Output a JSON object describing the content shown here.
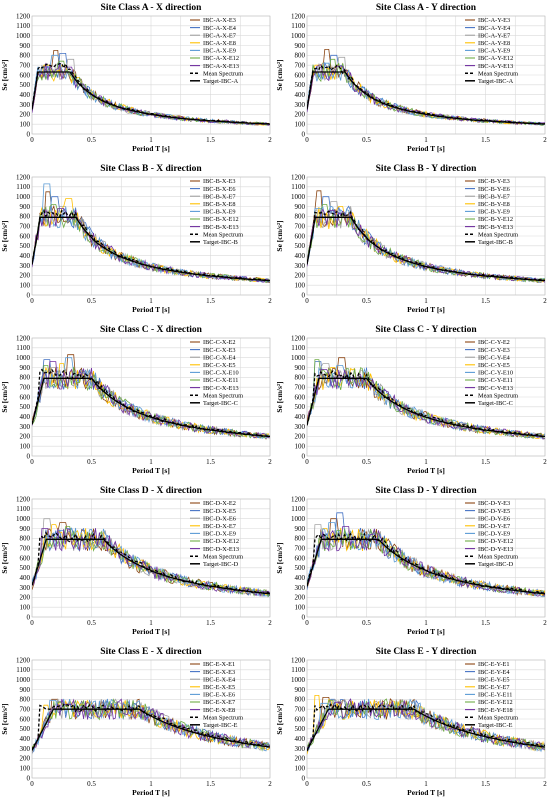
{
  "chart_data": [
    {
      "type": "line",
      "title": "Site Class A - X direction",
      "xlabel": "Period T [s]",
      "ylabel": "Se [cm/s²]",
      "xlim": [
        0,
        2
      ],
      "ylim": [
        0,
        1200
      ],
      "xticks": [
        "0",
        "0.5",
        "1",
        "1.5",
        "2"
      ],
      "yticks": [
        "0",
        "100",
        "200",
        "300",
        "400",
        "500",
        "600",
        "700",
        "800",
        "900",
        "1000",
        "1100",
        "1200"
      ],
      "grid": true,
      "legend": "top-right",
      "records": [
        "IBC-A-X-E3",
        "IBC-A-X-E4",
        "IBC-A-X-E7",
        "IBC-A-X-E8",
        "IBC-A-X-E9",
        "IBC-A-X-E12",
        "IBC-A-X-E13"
      ],
      "mean_label": "Mean Spectrum",
      "target_label": "Target-IBC-A",
      "target": {
        "T": [
          0,
          0.05,
          0.32,
          0.5,
          1.0,
          1.5,
          2.0
        ],
        "Se": [
          250,
          630,
          630,
          400,
          200,
          135,
          100
        ]
      },
      "mean_peak": 720,
      "record_peaks": [
        850,
        820,
        760,
        700,
        800,
        740,
        680
      ]
    },
    {
      "type": "line",
      "title": "Site Class A - Y direction",
      "xlabel": "Period T [s]",
      "ylabel": "Se [cm/s²]",
      "xlim": [
        0,
        2
      ],
      "ylim": [
        0,
        1200
      ],
      "xticks": [
        "0",
        "0.5",
        "1",
        "1.5",
        "2"
      ],
      "yticks": [
        "0",
        "100",
        "200",
        "300",
        "400",
        "500",
        "600",
        "700",
        "800",
        "900",
        "1000",
        "1100",
        "1200"
      ],
      "grid": true,
      "legend": "top-right",
      "records": [
        "IBC-A-Y-E3",
        "IBC-A-Y-E4",
        "IBC-A-Y-E7",
        "IBC-A-Y-E8",
        "IBC-A-Y-E9",
        "IBC-A-Y-E12",
        "IBC-A-Y-E13"
      ],
      "mean_label": "Mean Spectrum",
      "target_label": "Target-IBC-A",
      "target": {
        "T": [
          0,
          0.05,
          0.32,
          0.5,
          1.0,
          1.5,
          2.0
        ],
        "Se": [
          250,
          630,
          630,
          400,
          200,
          135,
          100
        ]
      },
      "mean_peak": 700,
      "record_peaks": [
        860,
        800,
        780,
        700,
        720,
        760,
        690
      ]
    },
    {
      "type": "line",
      "title": "Site Class B - X direction",
      "xlabel": "Period T [s]",
      "ylabel": "Se [cm/s²]",
      "xlim": [
        0,
        2
      ],
      "ylim": [
        0,
        1200
      ],
      "xticks": [
        "0",
        "0.5",
        "1",
        "1.5",
        "2"
      ],
      "yticks": [
        "0",
        "100",
        "200",
        "300",
        "400",
        "500",
        "600",
        "700",
        "800",
        "900",
        "1000",
        "1100",
        "1200"
      ],
      "grid": true,
      "legend": "top-right",
      "records": [
        "IBC-B-X-E3",
        "IBC-B-X-E6",
        "IBC-B-X-E7",
        "IBC-B-X-E8",
        "IBC-B-X-E9",
        "IBC-B-X-E12",
        "IBC-B-X-E13"
      ],
      "mean_label": "Mean Spectrum",
      "target_label": "Target-IBC-B",
      "target": {
        "T": [
          0,
          0.07,
          0.37,
          0.5,
          1.0,
          1.5,
          2.0
        ],
        "Se": [
          310,
          790,
          790,
          580,
          290,
          195,
          145
        ]
      },
      "mean_peak": 860,
      "record_peaks": [
        1050,
        1000,
        900,
        980,
        1130,
        920,
        880
      ]
    },
    {
      "type": "line",
      "title": "Site Class B - Y direction",
      "xlabel": "Period T [s]",
      "ylabel": "Se [cm/s²]",
      "xlim": [
        0,
        2
      ],
      "ylim": [
        0,
        1200
      ],
      "xticks": [
        "0",
        "0.5",
        "1",
        "1.5",
        "2"
      ],
      "yticks": [
        "0",
        "100",
        "200",
        "300",
        "400",
        "500",
        "600",
        "700",
        "800",
        "900",
        "1000",
        "1100",
        "1200"
      ],
      "grid": true,
      "legend": "top-right",
      "records": [
        "IBC-B-Y-E3",
        "IBC-B-Y-E6",
        "IBC-B-Y-E7",
        "IBC-B-Y-E8",
        "IBC-B-Y-E9",
        "IBC-B-Y-E12",
        "IBC-B-Y-E13"
      ],
      "mean_label": "Mean Spectrum",
      "target_label": "Target-IBC-B",
      "target": {
        "T": [
          0,
          0.07,
          0.37,
          0.5,
          1.0,
          1.5,
          2.0
        ],
        "Se": [
          310,
          790,
          790,
          580,
          290,
          195,
          145
        ]
      },
      "mean_peak": 850,
      "record_peaks": [
        1060,
        1000,
        950,
        900,
        880,
        920,
        860
      ]
    },
    {
      "type": "line",
      "title": "Site Class C - X direction",
      "xlabel": "Period T [s]",
      "ylabel": "Se [cm/s²]",
      "xlim": [
        0,
        2
      ],
      "ylim": [
        0,
        1200
      ],
      "xticks": [
        "0",
        "0.5",
        "1",
        "1.5",
        "2"
      ],
      "yticks": [
        "0",
        "100",
        "200",
        "300",
        "400",
        "500",
        "600",
        "700",
        "800",
        "900",
        "1000",
        "1100",
        "1200"
      ],
      "grid": true,
      "legend": "top-right",
      "records": [
        "IBC-C-X-E2",
        "IBC-C-X-E3",
        "IBC-C-X-E4",
        "IBC-C-X-E5",
        "IBC-C-X-E10",
        "IBC-C-X-E11",
        "IBC-C-X-E13"
      ],
      "mean_label": "Mean Spectrum",
      "target_label": "Target-IBC-C",
      "target": {
        "T": [
          0,
          0.1,
          0.5,
          1.0,
          1.5,
          2.0
        ],
        "Se": [
          320,
          790,
          790,
          395,
          265,
          200
        ]
      },
      "mean_peak": 880,
      "record_peaks": [
        1030,
        980,
        900,
        940,
        1000,
        920,
        960
      ]
    },
    {
      "type": "line",
      "title": "Site Class C - Y direction",
      "xlabel": "Period T [s]",
      "ylabel": "Se [cm/s²]",
      "xlim": [
        0,
        2
      ],
      "ylim": [
        0,
        1200
      ],
      "xticks": [
        "0",
        "0.5",
        "1",
        "1.5",
        "2"
      ],
      "yticks": [
        "0",
        "100",
        "200",
        "300",
        "400",
        "500",
        "600",
        "700",
        "800",
        "900",
        "1000",
        "1100",
        "1200"
      ],
      "grid": true,
      "legend": "top-right",
      "records": [
        "IBC-C-Y-E2",
        "IBC-C-Y-E3",
        "IBC-C-Y-E4",
        "IBC-C-Y-E5",
        "IBC-C-Y-E10",
        "IBC-C-Y-E11",
        "IBC-C-Y-E13"
      ],
      "mean_label": "Mean Spectrum",
      "target_label": "Target-IBC-C",
      "target": {
        "T": [
          0,
          0.1,
          0.5,
          1.0,
          1.5,
          2.0
        ],
        "Se": [
          320,
          790,
          790,
          395,
          265,
          200
        ]
      },
      "mean_peak": 870,
      "record_peaks": [
        1000,
        960,
        940,
        900,
        920,
        980,
        880
      ]
    },
    {
      "type": "line",
      "title": "Site Class D - X direction",
      "xlabel": "Period T [s]",
      "ylabel": "Se [cm/s²]",
      "xlim": [
        0,
        2
      ],
      "ylim": [
        0,
        1200
      ],
      "xticks": [
        "0",
        "0.5",
        "1",
        "1.5",
        "2"
      ],
      "yticks": [
        "0",
        "100",
        "200",
        "300",
        "400",
        "500",
        "600",
        "700",
        "800",
        "900",
        "1000",
        "1100",
        "1200"
      ],
      "grid": true,
      "legend": "top-right",
      "records": [
        "IBC-D-X-E2",
        "IBC-D-X-E5",
        "IBC-D-X-E6",
        "IBC-D-X-E7",
        "IBC-D-X-E9",
        "IBC-D-X-E12",
        "IBC-D-X-E13"
      ],
      "mean_label": "Mean Spectrum",
      "target_label": "Target-IBC-D",
      "target": {
        "T": [
          0,
          0.12,
          0.6,
          1.0,
          1.5,
          2.0
        ],
        "Se": [
          320,
          790,
          790,
          470,
          315,
          235
        ]
      },
      "mean_peak": 860,
      "record_peaks": [
        960,
        900,
        1000,
        940,
        880,
        920,
        900
      ]
    },
    {
      "type": "line",
      "title": "Site Class D - Y direction",
      "xlabel": "Period T [s]",
      "ylabel": "Se [cm/s²]",
      "xlim": [
        0,
        2
      ],
      "ylim": [
        0,
        1200
      ],
      "xticks": [
        "0",
        "0.5",
        "1",
        "1.5",
        "2"
      ],
      "yticks": [
        "0",
        "100",
        "200",
        "300",
        "400",
        "500",
        "600",
        "700",
        "800",
        "900",
        "1000",
        "1100",
        "1200"
      ],
      "grid": true,
      "legend": "top-right",
      "records": [
        "IBC-D-Y-E3",
        "IBC-D-Y-E5",
        "IBC-D-Y-E6",
        "IBC-D-Y-E7",
        "IBC-D-Y-E9",
        "IBC-D-Y-E12",
        "IBC-D-Y-E13"
      ],
      "mean_label": "Mean Spectrum",
      "target_label": "Target-IBC-D",
      "target": {
        "T": [
          0,
          0.12,
          0.6,
          1.0,
          1.5,
          2.0
        ],
        "Se": [
          320,
          790,
          790,
          470,
          315,
          235
        ]
      },
      "mean_peak": 850,
      "record_peaks": [
        1000,
        1060,
        940,
        900,
        960,
        880,
        920
      ]
    },
    {
      "type": "line",
      "title": "Site Class E - X direction",
      "xlabel": "Period T [s]",
      "ylabel": "Se [cm/s²]",
      "xlim": [
        0,
        2
      ],
      "ylim": [
        0,
        1200
      ],
      "xticks": [
        "0",
        "0.5",
        "1",
        "1.5",
        "2"
      ],
      "yticks": [
        "0",
        "100",
        "200",
        "300",
        "400",
        "500",
        "600",
        "700",
        "800",
        "900",
        "1000",
        "1100",
        "1200"
      ],
      "grid": true,
      "legend": "top-right",
      "records": [
        "IBC-E-X-E1",
        "IBC-E-X-E3",
        "IBC-E-X-E4",
        "IBC-E-X-E5",
        "IBC-E-X-E6",
        "IBC-E-X-E7",
        "IBC-E-X-E8"
      ],
      "mean_label": "Mean Spectrum",
      "target_label": "Target-IBC-E",
      "target": {
        "T": [
          0,
          0.18,
          0.9,
          1.0,
          1.5,
          2.0
        ],
        "Se": [
          280,
          700,
          700,
          630,
          420,
          315
        ]
      },
      "mean_peak": 740,
      "record_peaks": [
        800,
        780,
        760,
        740,
        790,
        770,
        750
      ]
    },
    {
      "type": "line",
      "title": "Site Class E - Y direction",
      "xlabel": "Period T [s]",
      "ylabel": "Se [cm/s²]",
      "xlim": [
        0,
        2
      ],
      "ylim": [
        0,
        1200
      ],
      "xticks": [
        "0",
        "0.5",
        "1",
        "1.5",
        "2"
      ],
      "yticks": [
        "0",
        "100",
        "200",
        "300",
        "400",
        "500",
        "600",
        "700",
        "800",
        "900",
        "1000",
        "1100",
        "1200"
      ],
      "grid": true,
      "legend": "top-right",
      "records": [
        "IBC-E-Y-E1",
        "IBC-E-Y-E4",
        "IBC-E-Y-E5",
        "IBC-E-Y-E7",
        "IBC-E-Y-E11",
        "IBC-E-Y-E12",
        "IBC-E-Y-E18"
      ],
      "mean_label": "Mean Spectrum",
      "target_label": "Target-IBC-E",
      "target": {
        "T": [
          0,
          0.18,
          0.9,
          1.0,
          1.5,
          2.0
        ],
        "Se": [
          280,
          700,
          700,
          630,
          420,
          315
        ]
      },
      "mean_peak": 750,
      "record_peaks": [
        820,
        800,
        780,
        840,
        760,
        790,
        770
      ]
    }
  ],
  "colors": {
    "records": [
      "#8B4513",
      "#4472C4",
      "#A5A5A5",
      "#FFC000",
      "#5B9BD5",
      "#70AD47",
      "#7030A0"
    ],
    "mean": "#000000",
    "target": "#000000"
  }
}
